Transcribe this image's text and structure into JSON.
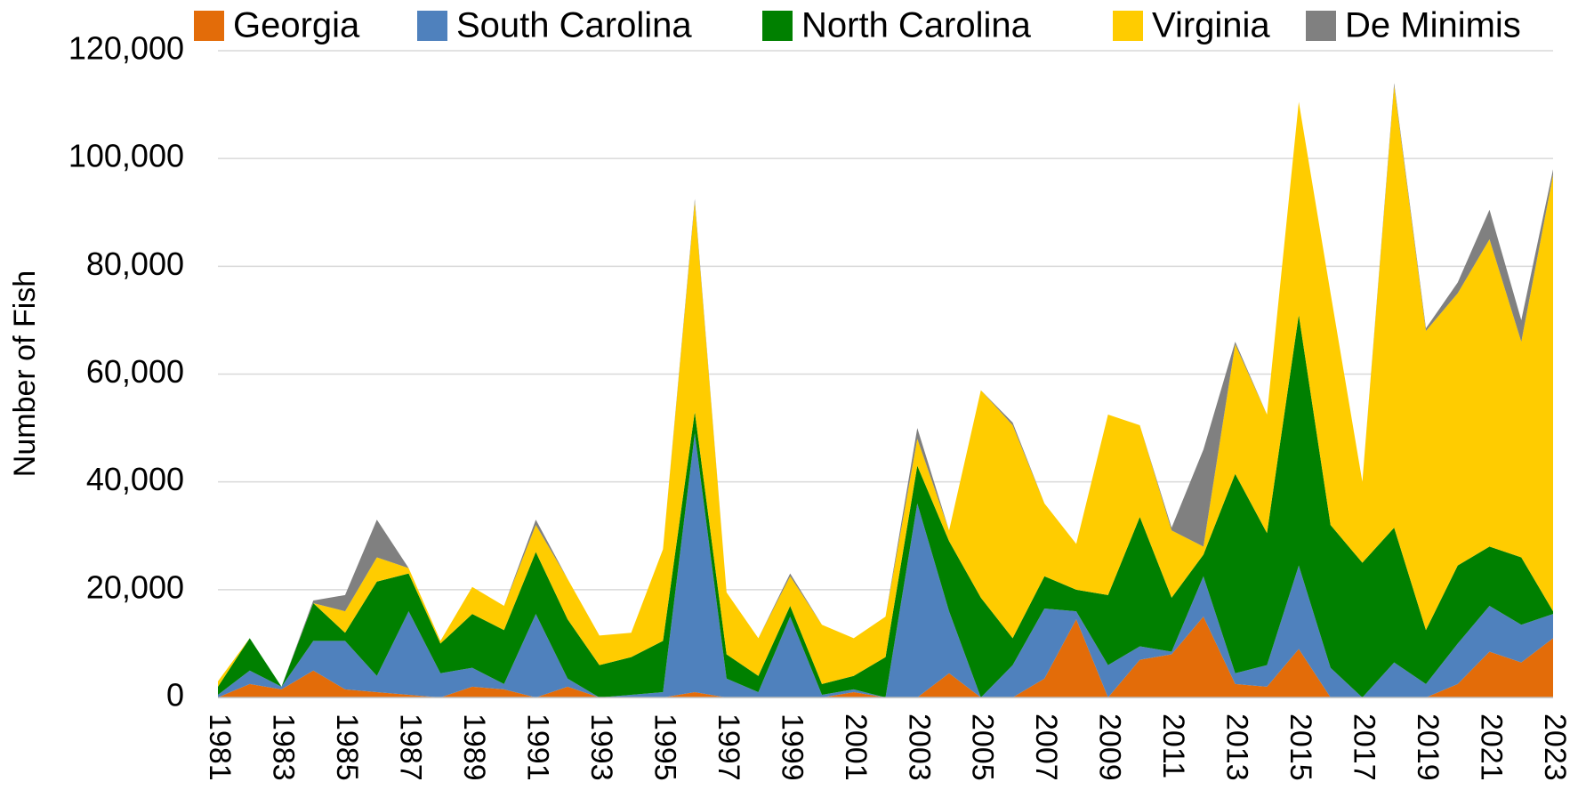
{
  "chart_data": {
    "type": "stacked_area",
    "y_label": "Number of Fish",
    "categories": [
      "1981",
      null,
      "1983",
      null,
      "1985",
      null,
      "1987",
      null,
      "1989",
      null,
      "1991",
      null,
      "1993",
      null,
      "1995",
      null,
      "1997",
      null,
      "1999",
      null,
      "2001",
      null,
      "2003",
      null,
      "2005",
      null,
      "2007",
      null,
      "2009",
      null,
      "2011",
      null,
      "2013",
      null,
      "2015",
      null,
      "2017",
      null,
      "2019",
      null,
      "2021",
      null,
      "2023"
    ],
    "series": [
      {
        "name": "Georgia",
        "color": "#e36c09",
        "values": [
          0,
          2500,
          1500,
          5000,
          1500,
          1000,
          500,
          0,
          2000,
          1500,
          0,
          2000,
          0,
          0,
          0,
          1000,
          0,
          0,
          0,
          0,
          1000,
          0,
          0,
          4500,
          0,
          0,
          3500,
          14500,
          0,
          7000,
          8000,
          15000,
          2500,
          2000,
          9000,
          0,
          0,
          0,
          0,
          2500,
          8500,
          6500,
          11000
        ]
      },
      {
        "name": "South Carolina",
        "color": "#4f81bd",
        "values": [
          500,
          2500,
          500,
          5500,
          9000,
          3000,
          15500,
          4500,
          3500,
          1000,
          15500,
          1500,
          0,
          500,
          1000,
          48000,
          3500,
          1000,
          15000,
          500,
          500,
          0,
          36000,
          11500,
          0,
          6000,
          13000,
          1500,
          6000,
          2500,
          500,
          7500,
          2000,
          4000,
          15500,
          5500,
          0,
          6500,
          2500,
          7500,
          8500,
          7000,
          4500
        ]
      },
      {
        "name": "North Carolina",
        "color": "#008000",
        "values": [
          1500,
          6000,
          0,
          7000,
          1500,
          17500,
          7000,
          5500,
          10000,
          10000,
          11500,
          11000,
          6000,
          7000,
          9500,
          4000,
          4500,
          3000,
          2000,
          2000,
          2500,
          7500,
          7000,
          13000,
          18500,
          5000,
          6000,
          4000,
          13000,
          24000,
          10000,
          4000,
          37000,
          24500,
          46500,
          26500,
          25000,
          25000,
          10000,
          14500,
          11000,
          12500,
          500
        ]
      },
      {
        "name": "Virginia",
        "color": "#ffcc00",
        "values": [
          1000,
          0,
          0,
          0,
          4000,
          4500,
          1000,
          500,
          5000,
          4500,
          5000,
          7500,
          5500,
          4500,
          17000,
          39000,
          11500,
          7000,
          5500,
          11000,
          7000,
          7500,
          5000,
          2000,
          38500,
          39500,
          13500,
          8500,
          33500,
          17000,
          12500,
          1500,
          24000,
          22000,
          39500,
          43000,
          15000,
          82000,
          55500,
          50500,
          57000,
          40000,
          81000
        ]
      },
      {
        "name": "De Minimis",
        "color": "#808080",
        "values": [
          0,
          0,
          0,
          500,
          3000,
          7000,
          0,
          0,
          0,
          0,
          1000,
          0,
          0,
          0,
          0,
          500,
          0,
          0,
          500,
          0,
          0,
          0,
          2000,
          0,
          0,
          500,
          0,
          0,
          0,
          0,
          500,
          18000,
          500,
          0,
          0,
          0,
          0,
          500,
          500,
          2000,
          5500,
          4000,
          1000
        ]
      }
    ],
    "ylim": [
      0,
      120000
    ],
    "yticks": [
      0,
      {
        "value": 20000,
        "label": "20,000"
      },
      {
        "value": 40000,
        "label": "40,000"
      },
      {
        "value": 60000,
        "label": "60,000"
      },
      {
        "value": 80000,
        "label": "80,000"
      },
      {
        "value": 100000,
        "label": "100,000"
      },
      {
        "value": 120000,
        "label": "120,000"
      }
    ],
    "grid": true,
    "legend": "top"
  }
}
